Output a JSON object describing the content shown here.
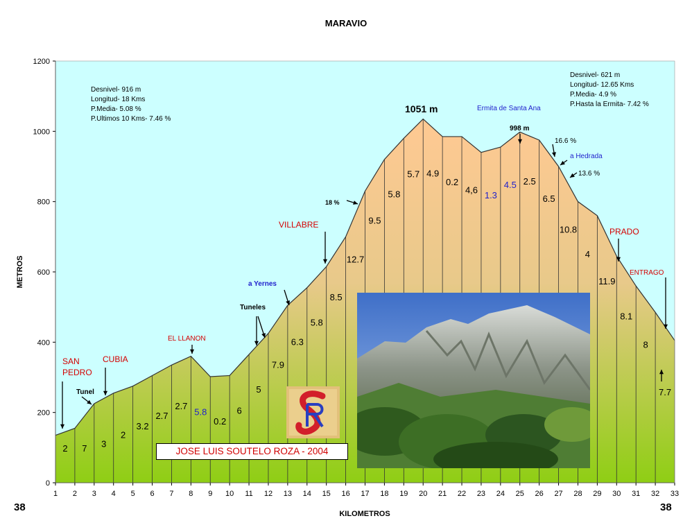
{
  "chart_data": {
    "type": "area",
    "title": "MARAVIO",
    "xlabel": "KILOMETROS",
    "ylabel": "METROS",
    "ylim": [
      0,
      1200
    ],
    "xlim": [
      1,
      33
    ],
    "y_ticks": [
      0,
      200,
      400,
      600,
      800,
      1000,
      1200
    ],
    "x_ticks": [
      1,
      2,
      3,
      4,
      5,
      6,
      7,
      8,
      9,
      10,
      11,
      12,
      13,
      14,
      15,
      16,
      17,
      18,
      19,
      20,
      21,
      22,
      23,
      24,
      25,
      26,
      27,
      28,
      29,
      30,
      31,
      32,
      33
    ],
    "grid": false,
    "profile": [
      {
        "x": 1,
        "y": 135
      },
      {
        "x": 2,
        "y": 155
      },
      {
        "x": 3,
        "y": 225
      },
      {
        "x": 4,
        "y": 255
      },
      {
        "x": 5,
        "y": 275
      },
      {
        "x": 6,
        "y": 305
      },
      {
        "x": 7,
        "y": 335
      },
      {
        "x": 8,
        "y": 360
      },
      {
        "x": 9,
        "y": 302
      },
      {
        "x": 10,
        "y": 305
      },
      {
        "x": 11,
        "y": 365
      },
      {
        "x": 12,
        "y": 425
      },
      {
        "x": 13,
        "y": 505
      },
      {
        "x": 14,
        "y": 555
      },
      {
        "x": 15,
        "y": 615
      },
      {
        "x": 16,
        "y": 700
      },
      {
        "x": 17,
        "y": 830
      },
      {
        "x": 18,
        "y": 920
      },
      {
        "x": 19,
        "y": 980
      },
      {
        "x": 20,
        "y": 1035
      },
      {
        "x": 21,
        "y": 985
      },
      {
        "x": 22,
        "y": 985
      },
      {
        "x": 23,
        "y": 940
      },
      {
        "x": 24,
        "y": 955
      },
      {
        "x": 25,
        "y": 998
      },
      {
        "x": 26,
        "y": 975
      },
      {
        "x": 27,
        "y": 900
      },
      {
        "x": 28,
        "y": 800
      },
      {
        "x": 29,
        "y": 760
      },
      {
        "x": 30,
        "y": 645
      },
      {
        "x": 31,
        "y": 560
      },
      {
        "x": 32,
        "y": 485
      },
      {
        "x": 33,
        "y": 405
      }
    ],
    "segment_gradients": [
      {
        "x": 1.5,
        "label": "2"
      },
      {
        "x": 2.5,
        "label": "7"
      },
      {
        "x": 3.5,
        "label": "3"
      },
      {
        "x": 4.5,
        "label": "2"
      },
      {
        "x": 5.5,
        "label": "3.2"
      },
      {
        "x": 6.5,
        "label": "2.7"
      },
      {
        "x": 7.5,
        "label": "2.7"
      },
      {
        "x": 8.5,
        "label": "5.8",
        "color": "#1f1fcc"
      },
      {
        "x": 9.5,
        "label": "0.2"
      },
      {
        "x": 10.5,
        "label": "6"
      },
      {
        "x": 11.5,
        "label": "5"
      },
      {
        "x": 12.5,
        "label": "7.9"
      },
      {
        "x": 13.5,
        "label": "6.3"
      },
      {
        "x": 14.5,
        "label": "5.8"
      },
      {
        "x": 15.5,
        "label": "8.5"
      },
      {
        "x": 16.5,
        "label": "12.7"
      },
      {
        "x": 17.5,
        "label": "9.5"
      },
      {
        "x": 18.5,
        "label": "5.8"
      },
      {
        "x": 19.5,
        "label": "5.7"
      },
      {
        "x": 20.5,
        "label": "4.9"
      },
      {
        "x": 21.5,
        "label": "0.2"
      },
      {
        "x": 22.5,
        "label": "4,6"
      },
      {
        "x": 23.5,
        "label": "1.3",
        "color": "#1f1fcc"
      },
      {
        "x": 24.5,
        "label": "4.5",
        "color": "#1f1fcc"
      },
      {
        "x": 25.5,
        "label": "2.5"
      },
      {
        "x": 26.5,
        "label": "6.5"
      },
      {
        "x": 27.5,
        "label": "10.8"
      },
      {
        "x": 28.5,
        "label": "4"
      },
      {
        "x": 29.5,
        "label": "11.9"
      },
      {
        "x": 30.5,
        "label": "8.1"
      },
      {
        "x": 31.5,
        "label": "8"
      },
      {
        "x": 32.5,
        "label": "7.7"
      }
    ],
    "annotations": {
      "summary_left": [
        "Desnivel- 916 m",
        "Longitud- 18 Kms",
        "P.Media- 5.08 %",
        "P.Ultimos 10 Kms- 7.46 %"
      ],
      "summary_right": [
        "Desnivel- 621 m",
        "Longitud- 12.65 Kms",
        "P.Media- 4.9 %",
        "P.Hasta la Ermita- 7.42 %"
      ],
      "peak": "1051 m",
      "ermita_altitude": "998 m",
      "ermita": "Ermita de Santa Ana",
      "san_pedro": [
        "SAN",
        "PEDRO"
      ],
      "cubia": "CUBIA",
      "tunel": "Tunel",
      "el_llanon": "EL LLANON",
      "tuneles": "Tuneles",
      "a_yernes": "a Yernes",
      "villabre": "VILLABRE",
      "pct_18": "18 %",
      "pct_16_6": "16.6 %",
      "a_hedrada": "a Hedrada",
      "pct_13_6": "13.6 %",
      "prado": "PRADO",
      "entrago": "ENTRAGO",
      "corner_left": "38",
      "corner_right": "38",
      "credit": "JOSE LUIS SOUTELO ROZA - 2004"
    },
    "colors": {
      "sky": "#ccffff",
      "fill_top": "#ffc993",
      "fill_bottom": "#8fce14",
      "red_label": "#d40000",
      "blue_label": "#1f1fcc"
    }
  }
}
